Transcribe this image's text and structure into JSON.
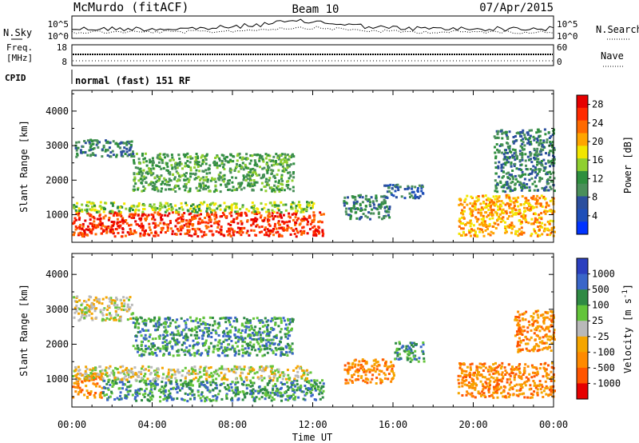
{
  "header": {
    "station": "McMurdo (fitACF)",
    "beam": "Beam 10",
    "date": "07/Apr/2015"
  },
  "noise_panel": {
    "left_label": "N.Sky",
    "right_label": "N.Search",
    "tick_top": "10^5",
    "tick_bottom": "10^0"
  },
  "freq_panel": {
    "label_top": "Freq.",
    "label_bottom": "[MHz]",
    "right_label": "Nave",
    "left_ticks": [
      "18",
      "8"
    ],
    "right_ticks": [
      "60",
      "0"
    ]
  },
  "cpid_panel": {
    "label": "CPID",
    "mode_text": "normal (fast) 151 RF"
  },
  "colors": {
    "power": [
      "#0033ff",
      "#1f4fb8",
      "#2b4f9e",
      "#4a8f5a",
      "#2e8f3e",
      "#8fcf2f",
      "#f2e600",
      "#ffa500",
      "#ff6a00",
      "#ff2a00",
      "#e60000"
    ],
    "velocity": [
      "#2b3fbf",
      "#3a66c9",
      "#2f8a44",
      "#63c43a",
      "#b9b9b9",
      "#f5a500",
      "#ff8a00",
      "#ff5500",
      "#e60000"
    ]
  },
  "chart_data": [
    {
      "type": "heatmap",
      "name": "Power",
      "ylabel": "Slant Range [km]",
      "ylim": [
        200,
        4600
      ],
      "yticks": [
        1000,
        2000,
        3000,
        4000
      ],
      "xticks": [
        "00:00",
        "04:00",
        "08:00",
        "12:00",
        "16:00",
        "20:00",
        "00:00"
      ],
      "xlim_hours": [
        0,
        24
      ],
      "colorbar_label": "Power [dB]",
      "colorbar_ticks": [
        "4",
        "8",
        "12",
        "16",
        "20",
        "24",
        "28"
      ],
      "colorbar_range": [
        0,
        30
      ],
      "echo_regions": [
        {
          "t": [
            0,
            12.5
          ],
          "range_km": [
            400,
            1100
          ],
          "value_db": 28
        },
        {
          "t": [
            0,
            12
          ],
          "range_km": [
            1100,
            1400
          ],
          "value_db": 14
        },
        {
          "t": [
            0,
            3
          ],
          "range_km": [
            2700,
            3200
          ],
          "value_db": 8
        },
        {
          "t": [
            3,
            11
          ],
          "range_km": [
            1700,
            2800
          ],
          "value_db": 12
        },
        {
          "t": [
            13.5,
            15.8
          ],
          "range_km": [
            900,
            1600
          ],
          "value_db": 8
        },
        {
          "t": [
            15.5,
            17.5
          ],
          "range_km": [
            1500,
            1900
          ],
          "value_db": 6
        },
        {
          "t": [
            19.2,
            24
          ],
          "range_km": [
            400,
            1600
          ],
          "value_db": 22
        },
        {
          "t": [
            21,
            24
          ],
          "range_km": [
            1700,
            3500
          ],
          "value_db": 8
        }
      ]
    },
    {
      "type": "heatmap",
      "name": "Velocity",
      "ylabel": "Slant Range [km]",
      "ylim": [
        200,
        4600
      ],
      "yticks": [
        1000,
        2000,
        3000,
        4000
      ],
      "xticks": [
        "00:00",
        "04:00",
        "08:00",
        "12:00",
        "16:00",
        "20:00",
        "00:00"
      ],
      "xlabel": "Time UT",
      "xlim_hours": [
        0,
        24
      ],
      "colorbar_label": "Velocity [m s^-1]",
      "colorbar_ticks": [
        "1000",
        "500",
        "100",
        "25",
        "-25",
        "-100",
        "-500",
        "-1000"
      ],
      "echo_regions": [
        {
          "t": [
            0,
            1.5
          ],
          "range_km": [
            500,
            1200
          ],
          "value_ms": -150
        },
        {
          "t": [
            1.5,
            12.5
          ],
          "range_km": [
            400,
            1000
          ],
          "value_ms": 150
        },
        {
          "t": [
            0,
            12
          ],
          "range_km": [
            1000,
            1400
          ],
          "value_ms": 0
        },
        {
          "t": [
            0,
            3
          ],
          "range_km": [
            2700,
            3400
          ],
          "value_ms": 0
        },
        {
          "t": [
            3,
            11
          ],
          "range_km": [
            1700,
            2800
          ],
          "value_ms": 120
        },
        {
          "t": [
            13.5,
            16
          ],
          "range_km": [
            900,
            1600
          ],
          "value_ms": -150
        },
        {
          "t": [
            16,
            17.5
          ],
          "range_km": [
            1500,
            2100
          ],
          "value_ms": 150
        },
        {
          "t": [
            19.2,
            24
          ],
          "range_km": [
            500,
            1500
          ],
          "value_ms": -200
        },
        {
          "t": [
            22,
            24
          ],
          "range_km": [
            1800,
            3000
          ],
          "value_ms": -150
        }
      ]
    }
  ]
}
